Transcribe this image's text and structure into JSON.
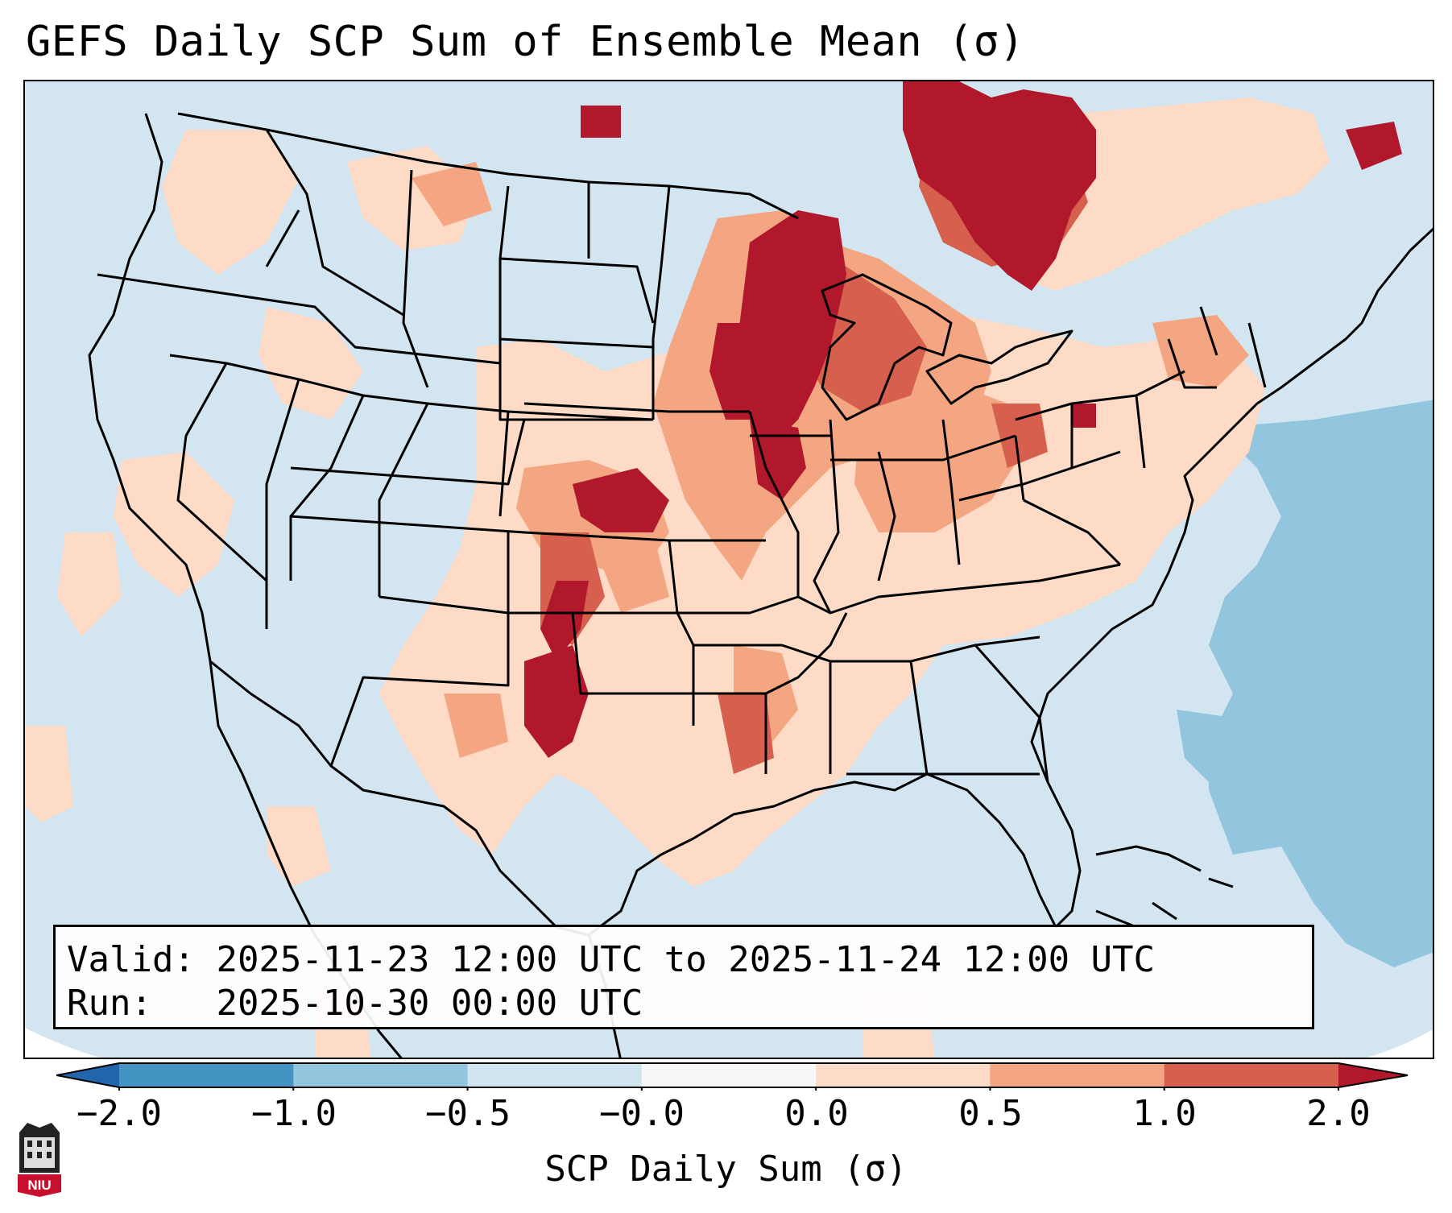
{
  "title": "GEFS Daily SCP Sum of Ensemble Mean (σ)",
  "map": {
    "region": "Contiguous United States",
    "field": "SCP Daily Sum of Ensemble Mean",
    "units": "σ"
  },
  "info": {
    "valid_label": "Valid:",
    "valid_value": "2025-11-23 12:00 UTC to 2025-11-24 12:00 UTC",
    "run_label": "Run:",
    "run_value": "2025-10-30 00:00 UTC"
  },
  "colorbar": {
    "label": "SCP Daily Sum (σ)",
    "ticks": [
      "−2.0",
      "−1.0",
      "−0.5",
      "−0.0",
      "0.0",
      "0.5",
      "1.0",
      "2.0"
    ],
    "bins": [
      {
        "range": "< -2.0",
        "color": "#2166ac"
      },
      {
        "range": "-2.0 to -1.0",
        "color": "#4393c3"
      },
      {
        "range": "-1.0 to -0.5",
        "color": "#92c5de"
      },
      {
        "range": "-0.5 to -0.0",
        "color": "#d1e5f0"
      },
      {
        "range": "-0.0 to 0.0",
        "color": "#f7f7f7"
      },
      {
        "range": "0.0 to 0.5",
        "color": "#fddbc7"
      },
      {
        "range": "0.5 to 1.0",
        "color": "#f4a582"
      },
      {
        "range": "1.0 to 2.0",
        "color": "#d6604d"
      },
      {
        "range": "> 2.0",
        "color": "#b2182b"
      }
    ]
  },
  "logo": {
    "text": "NIU",
    "icon": "niu-logo-icon"
  }
}
